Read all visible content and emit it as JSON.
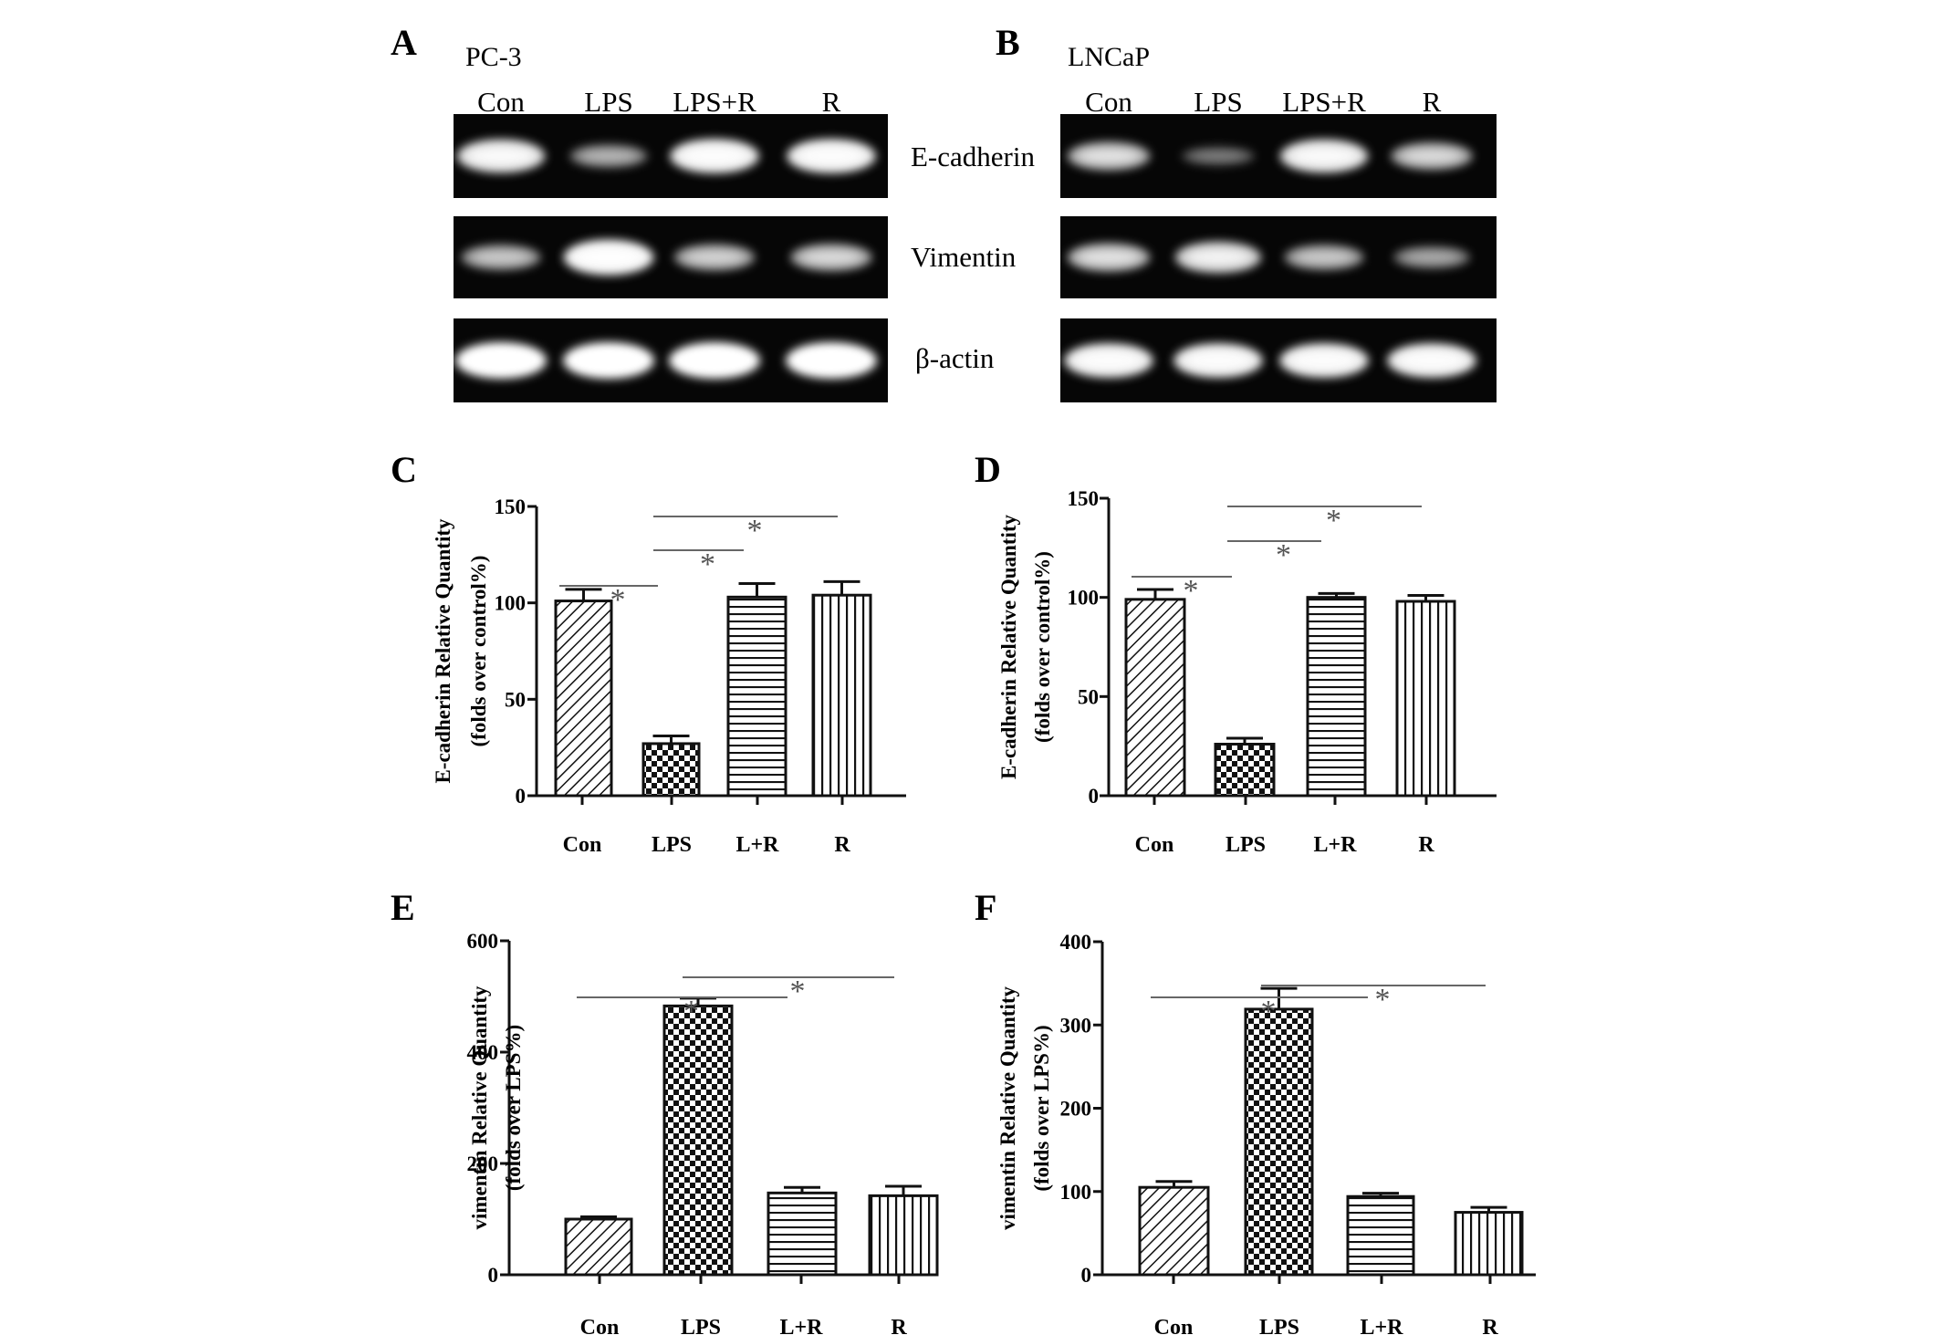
{
  "figure": {
    "gel_panels": [
      {
        "letter": "A",
        "cell_line": "PC-3",
        "lanes": [
          "Con",
          "LPS",
          "LPS+R",
          "R"
        ],
        "genes": [
          "E-cadherin",
          "Vimentin",
          "β-actin"
        ],
        "band_intensity": [
          [
            0.85,
            0.35,
            0.9,
            0.9
          ],
          [
            0.45,
            0.95,
            0.5,
            0.55
          ],
          [
            1.0,
            1.0,
            1.0,
            1.0
          ]
        ]
      },
      {
        "letter": "B",
        "cell_line": "LNCaP",
        "lanes": [
          "Con",
          "LPS",
          "LPS+R",
          "R"
        ],
        "genes": [],
        "band_intensity": [
          [
            0.6,
            0.12,
            0.85,
            0.55
          ],
          [
            0.6,
            0.75,
            0.45,
            0.3
          ],
          [
            0.9,
            0.9,
            0.9,
            0.9
          ]
        ]
      }
    ]
  },
  "chart_data": [
    {
      "letter": "C",
      "type": "bar",
      "categories": [
        "Con",
        "LPS",
        "L+R",
        "R"
      ],
      "values": [
        101,
        27,
        103,
        104
      ],
      "errors": [
        6,
        4,
        7,
        7
      ],
      "ylabel": [
        "E-cadherin Relative Quantity",
        "(folds over control%)"
      ],
      "ylim": [
        0,
        150
      ],
      "yticks": [
        "0",
        "50",
        "100",
        "150"
      ],
      "patterns": [
        "diagonal",
        "checker",
        "horizontal",
        "vertical"
      ],
      "significance": [
        {
          "from": 0,
          "to": 1,
          "level": 0,
          "label": "*"
        },
        {
          "from": 1,
          "to": 2,
          "level": 1,
          "label": "*"
        },
        {
          "from": 1,
          "to": 3,
          "level": 2,
          "label": "*"
        }
      ]
    },
    {
      "letter": "D",
      "type": "bar",
      "categories": [
        "Con",
        "LPS",
        "L+R",
        "R"
      ],
      "values": [
        99,
        26,
        100,
        98
      ],
      "errors": [
        5,
        3,
        2,
        3
      ],
      "ylabel": [
        "E-cadherin Relative Quantity",
        "(folds over control%)"
      ],
      "ylim": [
        0,
        150
      ],
      "yticks": [
        "0",
        "50",
        "100",
        "150"
      ],
      "patterns": [
        "diagonal",
        "checker",
        "horizontal",
        "vertical"
      ],
      "significance": [
        {
          "from": 0,
          "to": 1,
          "level": 0,
          "label": "*"
        },
        {
          "from": 1,
          "to": 2,
          "level": 1,
          "label": "*"
        },
        {
          "from": 1,
          "to": 3,
          "level": 2,
          "label": "*"
        }
      ]
    },
    {
      "letter": "E",
      "type": "bar",
      "categories": [
        "Con",
        "LPS",
        "L+R",
        "R"
      ],
      "values": [
        100,
        483,
        147,
        142
      ],
      "errors": [
        4,
        14,
        10,
        17
      ],
      "ylabel": [
        "vimentin Relative Quantity",
        "(folds over LPS%)"
      ],
      "ylim": [
        0,
        600
      ],
      "yticks": [
        "0",
        "200",
        "400",
        "600"
      ],
      "patterns": [
        "diagonal",
        "checker",
        "horizontal",
        "vertical"
      ],
      "significance": [
        {
          "from": 0,
          "to": 2,
          "level": 0,
          "label": "*"
        },
        {
          "from": 1,
          "to": 3,
          "level": 1,
          "label": "*"
        }
      ]
    },
    {
      "letter": "F",
      "type": "bar",
      "categories": [
        "Con",
        "LPS",
        "L+R",
        "R"
      ],
      "values": [
        105,
        319,
        94,
        75
      ],
      "errors": [
        7,
        25,
        4,
        6
      ],
      "ylabel": [
        "vimentin Relative Quantity",
        "(folds over LPS%)"
      ],
      "ylim": [
        0,
        400
      ],
      "yticks": [
        "0",
        "100",
        "200",
        "300",
        "400"
      ],
      "patterns": [
        "diagonal",
        "checker",
        "horizontal",
        "vertical"
      ],
      "significance": [
        {
          "from": 0,
          "to": 2,
          "level": 0,
          "label": "*"
        },
        {
          "from": 1,
          "to": 3,
          "level": 1,
          "label": "*"
        }
      ]
    }
  ]
}
